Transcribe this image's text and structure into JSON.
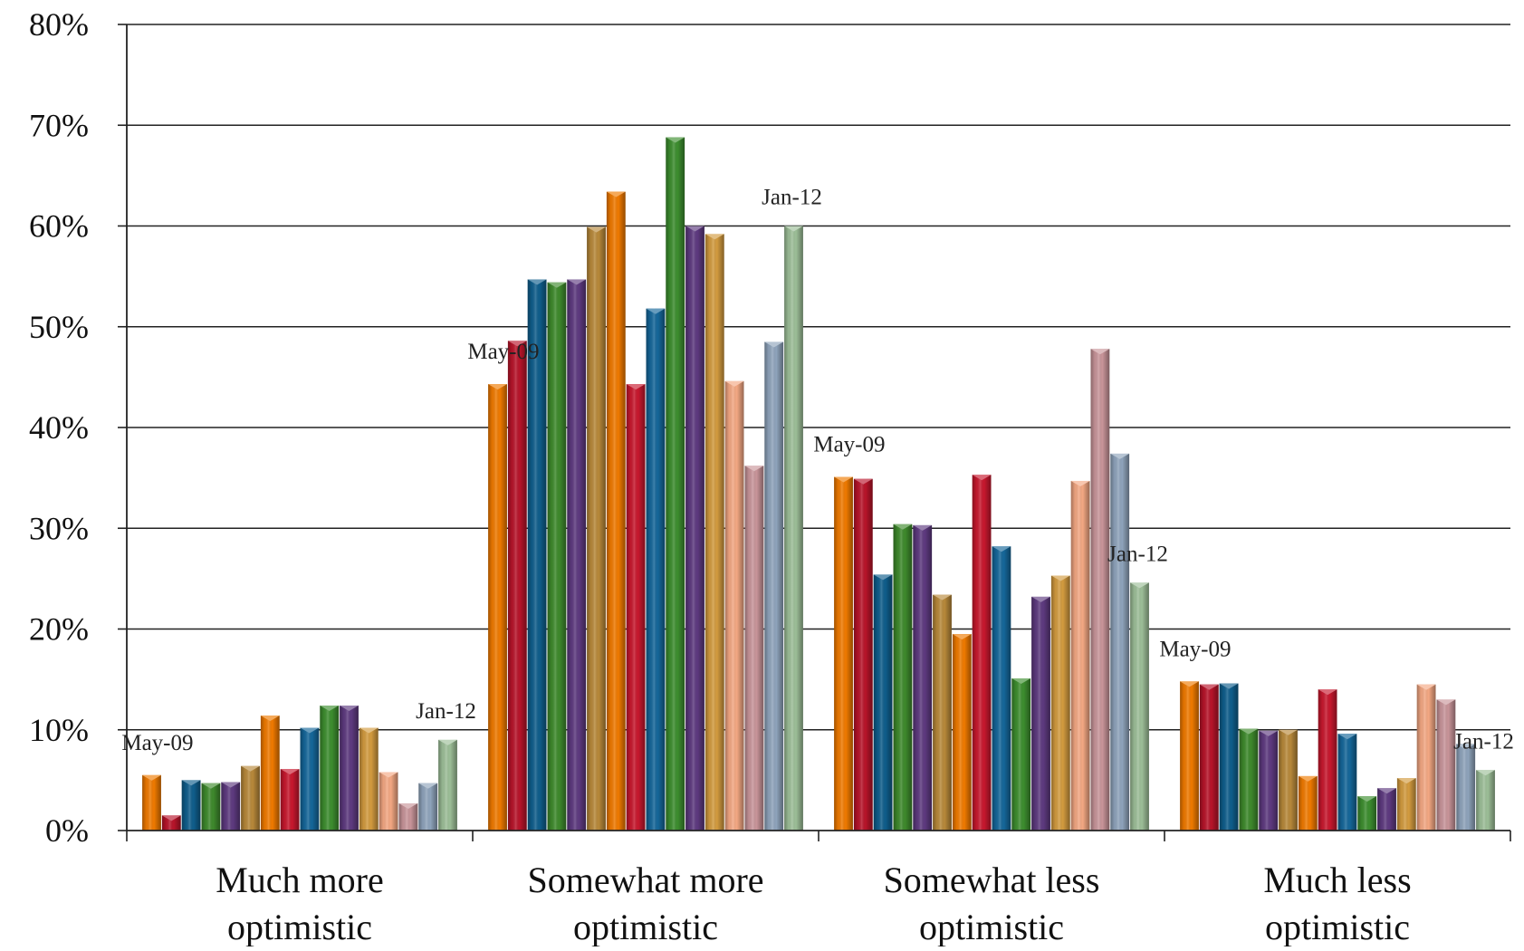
{
  "chart_data": {
    "type": "bar",
    "title": "",
    "xlabel": "",
    "ylabel": "",
    "ylim": [
      0,
      80
    ],
    "y_ticks": [
      "0%",
      "10%",
      "20%",
      "30%",
      "40%",
      "50%",
      "60%",
      "70%",
      "80%"
    ],
    "grid": true,
    "legend": "none",
    "categories": [
      [
        "Much more",
        "optimistic"
      ],
      [
        "Somewhat more",
        "optimistic"
      ],
      [
        "Somewhat less",
        "optimistic"
      ],
      [
        "Much less",
        "optimistic"
      ]
    ],
    "series_colors": [
      "#f07a00",
      "#b8142a",
      "#0f5e8c",
      "#3e8a2c",
      "#5e3a80",
      "#b8893a",
      "#f07a00",
      "#c8182e",
      "#15679a",
      "#3d8e2f",
      "#5e3a80",
      "#d39b3f",
      "#f4a883",
      "#c9959a",
      "#8fa4bc",
      "#9dbf98"
    ],
    "series_values": [
      [
        5.5,
        1.5,
        5.0,
        4.7,
        4.8,
        6.4,
        11.4,
        6.1,
        10.2,
        12.4,
        12.4,
        10.2,
        5.8,
        2.7,
        4.7,
        9.0
      ],
      [
        44.3,
        48.6,
        54.7,
        54.4,
        54.7,
        59.9,
        63.4,
        44.3,
        51.8,
        68.8,
        60.0,
        59.2,
        44.6,
        36.2,
        48.5,
        60.0
      ],
      [
        35.1,
        34.9,
        25.4,
        30.4,
        30.3,
        23.4,
        19.5,
        35.3,
        28.2,
        15.1,
        23.2,
        25.3,
        34.7,
        47.8,
        37.4,
        24.6
      ],
      [
        14.8,
        14.5,
        14.6,
        10.1,
        9.9,
        10.0,
        5.4,
        14.0,
        9.6,
        3.4,
        4.2,
        5.2,
        14.5,
        13.0,
        8.6,
        6.0
      ]
    ],
    "annotations": [
      {
        "text": "May-09",
        "category": 0,
        "series": 0
      },
      {
        "text": "Jan-12",
        "category": 0,
        "series": 15
      },
      {
        "text": "May-09",
        "category": 1,
        "series": 0
      },
      {
        "text": "Jan-12",
        "category": 1,
        "series": 15
      },
      {
        "text": "May-09",
        "category": 2,
        "series": 0
      },
      {
        "text": "Jan-12",
        "category": 2,
        "series": 15
      },
      {
        "text": "May-09",
        "category": 3,
        "series": 0
      },
      {
        "text": "Jan-12",
        "category": 3,
        "series": 15
      }
    ]
  }
}
